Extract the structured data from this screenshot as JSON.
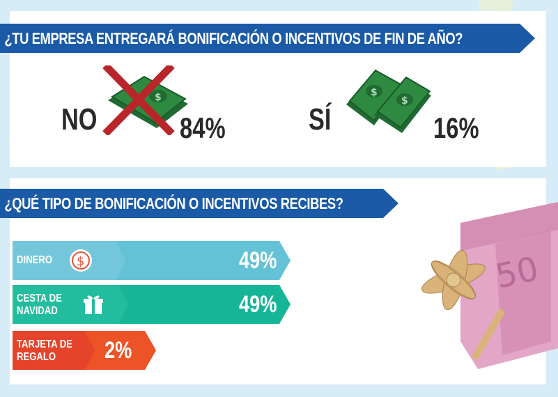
{
  "chart_data": [
    {
      "type": "bar",
      "title": "¿TU EMPRESA ENTREGARÁ BONIFICACIÓN O INCENTIVOS DE FIN DE AÑO?",
      "categories": [
        "NO",
        "SÍ"
      ],
      "values": [
        84,
        16
      ],
      "value_labels": [
        "84%",
        "16%"
      ]
    },
    {
      "type": "bar",
      "title": "¿QUÉ TIPO DE BONIFICACIÓN O INCENTIVOS RECIBES?",
      "categories": [
        "DINERO",
        "CESTA DE NAVIDAD",
        "TARJETA DE REGALO"
      ],
      "category_lines": [
        [
          "DINERO"
        ],
        [
          "CESTA DE",
          "NAVIDAD"
        ],
        [
          "TARJETA DE",
          "REGALO"
        ]
      ],
      "values": [
        49,
        49,
        2
      ],
      "value_labels": [
        "49%",
        "49%",
        "2%"
      ],
      "colors": [
        "#64c2d7",
        "#16b597",
        "#ec5327"
      ],
      "label_colors": [
        "#74c7da",
        "#22bd9f",
        "#e5442b"
      ]
    }
  ],
  "icons": [
    "money-bill-icon",
    "cross-icon",
    "dollar-circle-icon",
    "gift-icon",
    "gift-box-image"
  ]
}
